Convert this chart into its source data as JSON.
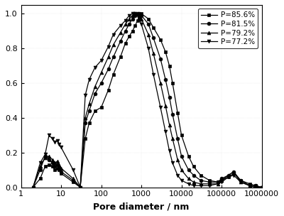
{
  "title": "",
  "xlabel": "Pore diameter / nm",
  "ylabel": "",
  "ylim": [
    0,
    1.05
  ],
  "series": [
    {
      "label": "P=85.6%",
      "marker": "s",
      "color": "#000000",
      "x": [
        2,
        3,
        4,
        5,
        6,
        7,
        8,
        9,
        10,
        20,
        30,
        40,
        50,
        70,
        100,
        150,
        200,
        300,
        400,
        500,
        600,
        700,
        800,
        900,
        1000,
        1500,
        2000,
        3000,
        4000,
        5000,
        6000,
        8000,
        10000,
        15000,
        20000,
        30000,
        50000,
        80000,
        100000,
        150000,
        200000,
        300000,
        500000,
        700000,
        1000000
      ],
      "y": [
        0.0,
        0.05,
        0.12,
        0.13,
        0.12,
        0.1,
        0.11,
        0.1,
        0.08,
        0.03,
        0.0,
        0.28,
        0.37,
        0.44,
        0.46,
        0.56,
        0.65,
        0.75,
        0.83,
        0.87,
        0.9,
        0.93,
        0.96,
        0.98,
        1.0,
        0.97,
        0.92,
        0.85,
        0.78,
        0.7,
        0.6,
        0.43,
        0.3,
        0.18,
        0.12,
        0.07,
        0.04,
        0.03,
        0.04,
        0.06,
        0.08,
        0.04,
        0.02,
        0.01,
        0.0
      ]
    },
    {
      "label": "P=81.5%",
      "marker": "o",
      "color": "#000000",
      "x": [
        2,
        3,
        4,
        5,
        6,
        7,
        8,
        9,
        10,
        20,
        30,
        40,
        50,
        70,
        100,
        150,
        200,
        300,
        400,
        500,
        600,
        700,
        800,
        900,
        1000,
        1500,
        2000,
        3000,
        4000,
        5000,
        6000,
        8000,
        10000,
        15000,
        20000,
        30000,
        50000,
        80000,
        100000,
        150000,
        200000,
        300000,
        500000,
        700000,
        1000000
      ],
      "y": [
        0.0,
        0.1,
        0.18,
        0.16,
        0.14,
        0.12,
        0.13,
        0.11,
        0.09,
        0.04,
        0.0,
        0.37,
        0.44,
        0.54,
        0.6,
        0.68,
        0.75,
        0.84,
        0.9,
        0.94,
        0.97,
        0.99,
        1.0,
        1.0,
        0.99,
        0.94,
        0.86,
        0.74,
        0.62,
        0.52,
        0.42,
        0.28,
        0.18,
        0.1,
        0.07,
        0.04,
        0.03,
        0.03,
        0.05,
        0.07,
        0.09,
        0.04,
        0.01,
        0.01,
        0.0
      ]
    },
    {
      "label": "P=79.2%",
      "marker": "^",
      "color": "#000000",
      "x": [
        2,
        3,
        4,
        5,
        6,
        7,
        8,
        9,
        10,
        20,
        30,
        40,
        50,
        70,
        100,
        150,
        200,
        300,
        400,
        500,
        600,
        700,
        800,
        900,
        1000,
        1500,
        2000,
        3000,
        4000,
        5000,
        6000,
        8000,
        10000,
        15000,
        20000,
        30000,
        50000,
        80000,
        100000,
        150000,
        200000,
        300000,
        500000,
        700000,
        1000000
      ],
      "y": [
        0.0,
        0.12,
        0.17,
        0.18,
        0.16,
        0.14,
        0.15,
        0.13,
        0.11,
        0.05,
        0.0,
        0.4,
        0.48,
        0.58,
        0.66,
        0.75,
        0.82,
        0.89,
        0.94,
        0.97,
        0.99,
        1.0,
        1.0,
        0.99,
        0.97,
        0.88,
        0.77,
        0.6,
        0.47,
        0.36,
        0.28,
        0.16,
        0.1,
        0.05,
        0.03,
        0.02,
        0.02,
        0.02,
        0.04,
        0.07,
        0.09,
        0.03,
        0.01,
        0.0,
        0.0
      ]
    },
    {
      "label": "P=77.2%",
      "marker": "v",
      "color": "#000000",
      "x": [
        2,
        3,
        4,
        5,
        6,
        7,
        8,
        9,
        10,
        20,
        30,
        40,
        50,
        70,
        100,
        150,
        200,
        300,
        400,
        500,
        600,
        700,
        800,
        900,
        1000,
        1500,
        2000,
        3000,
        4000,
        5000,
        6000,
        8000,
        10000,
        15000,
        20000,
        30000,
        50000,
        80000,
        100000,
        150000,
        200000,
        300000,
        500000,
        700000,
        1000000
      ],
      "y": [
        0.0,
        0.14,
        0.19,
        0.3,
        0.28,
        0.26,
        0.27,
        0.25,
        0.23,
        0.1,
        0.0,
        0.53,
        0.62,
        0.69,
        0.73,
        0.81,
        0.88,
        0.93,
        0.96,
        0.99,
        1.0,
        1.0,
        0.99,
        0.97,
        0.94,
        0.8,
        0.65,
        0.46,
        0.32,
        0.21,
        0.14,
        0.07,
        0.04,
        0.02,
        0.01,
        0.01,
        0.01,
        0.02,
        0.03,
        0.06,
        0.07,
        0.03,
        0.01,
        0.0,
        0.0
      ]
    }
  ],
  "yticks": [
    0.0,
    0.2,
    0.4,
    0.6,
    0.8,
    1.0
  ],
  "xtick_vals": [
    1,
    10,
    100,
    1000,
    10000,
    100000,
    1000000
  ],
  "xtick_labels": [
    "1",
    "10",
    "100",
    "1000",
    "10000",
    "100000",
    "1000000"
  ],
  "legend_loc": "upper right",
  "markersize": 3.5,
  "linewidth": 0.9,
  "background_color": "#ffffff",
  "dot_grid": true
}
